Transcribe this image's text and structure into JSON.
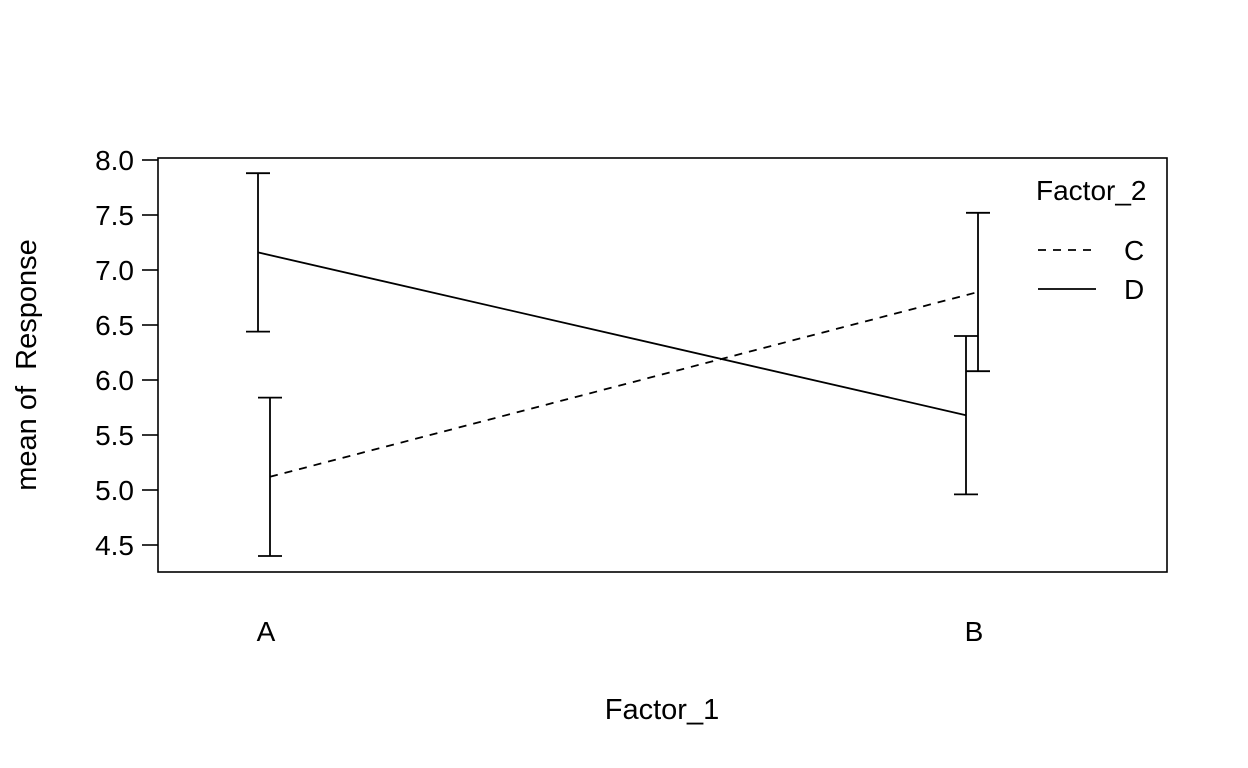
{
  "chart_data": {
    "type": "line",
    "title": "",
    "xlabel": "Factor_1",
    "ylabel": "mean of  Response",
    "categories": [
      "A",
      "B"
    ],
    "yticks": [
      "4.5",
      "5.0",
      "5.5",
      "6.0",
      "6.5",
      "7.0",
      "7.5",
      "8.0"
    ],
    "ylim": [
      4.27,
      8.03
    ],
    "grid": false,
    "legend": {
      "title": "Factor_2",
      "position": "top-right",
      "entries": [
        "C",
        "D"
      ]
    },
    "series": [
      {
        "name": "C",
        "line_style": "dashed",
        "values": [
          5.12,
          6.8
        ],
        "error_lower": [
          4.4,
          6.08
        ],
        "error_upper": [
          5.84,
          7.52
        ]
      },
      {
        "name": "D",
        "line_style": "solid",
        "values": [
          7.16,
          5.68
        ],
        "error_lower": [
          6.44,
          4.96
        ],
        "error_upper": [
          7.88,
          6.4
        ]
      }
    ],
    "colors": {
      "lines": "#000000",
      "background": "#ffffff"
    }
  }
}
